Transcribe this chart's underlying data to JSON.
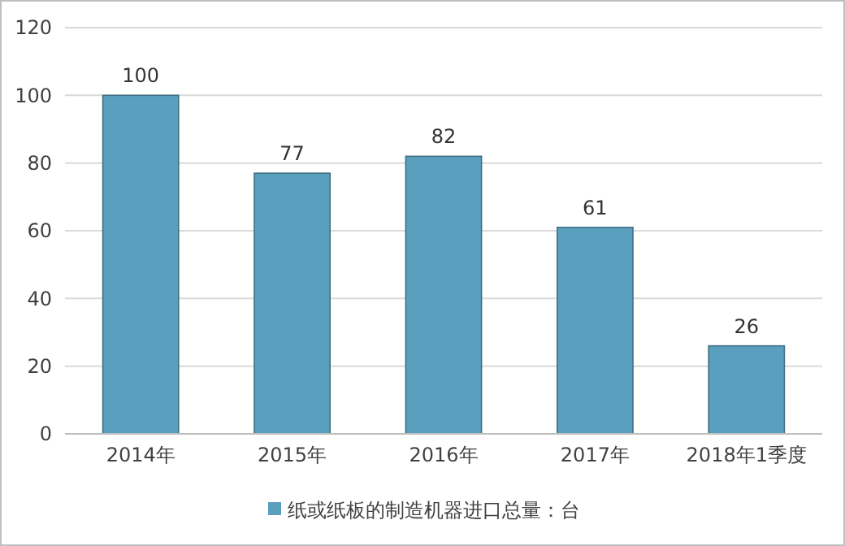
{
  "chart_data": {
    "type": "bar",
    "categories": [
      "2014年",
      "2015年",
      "2016年",
      "2017年",
      "2018年1季度"
    ],
    "series": [
      {
        "name": "纸或纸板的制造机器进口总量：台",
        "color": "#5b9fbf",
        "values": [
          100,
          77,
          82,
          61,
          26
        ]
      }
    ],
    "ylim": [
      0,
      120
    ],
    "yticks": [
      0,
      20,
      40,
      60,
      80,
      100,
      120
    ],
    "grid": "y",
    "legend": "bottom",
    "data_labels": true
  }
}
